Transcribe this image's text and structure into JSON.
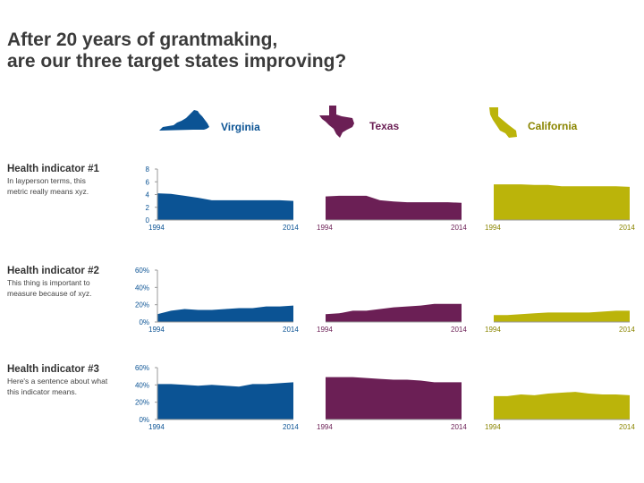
{
  "title": {
    "line1": "After 20 years of grantmaking,",
    "line2": "are our three target states improving?"
  },
  "states": [
    {
      "name": "Virginia",
      "color": "#0b5394",
      "icon": "virginia-state-icon"
    },
    {
      "name": "Texas",
      "color": "#6b1f55",
      "icon": "texas-state-icon"
    },
    {
      "name": "California",
      "color": "#bbb40a",
      "icon": "california-state-icon"
    }
  ],
  "rows": [
    {
      "title": "Health indicator #1",
      "description": "In layperson terms, this metric really means xyz."
    },
    {
      "title": "Health indicator #2",
      "description": "This thing is important to measure because of xyz."
    },
    {
      "title": "Health indicator #3",
      "description": "Here's a sentence about what this indicator means."
    }
  ],
  "chart_data": [
    {
      "type": "area",
      "indicator": "Health indicator #1",
      "state": "Virginia",
      "x": [
        1994,
        1996,
        1998,
        2000,
        2002,
        2004,
        2006,
        2008,
        2010,
        2012,
        2014
      ],
      "values": [
        4.2,
        4.1,
        3.8,
        3.5,
        3.1,
        3.1,
        3.1,
        3.1,
        3.1,
        3.1,
        3.0
      ],
      "ylim": [
        0,
        8
      ],
      "yticks": [
        "0",
        "2",
        "4",
        "6",
        "8"
      ],
      "xtick_labels": [
        "1994",
        "2014"
      ]
    },
    {
      "type": "area",
      "indicator": "Health indicator #1",
      "state": "Texas",
      "x": [
        1994,
        1996,
        1998,
        2000,
        2002,
        2004,
        2006,
        2008,
        2010,
        2012,
        2014
      ],
      "values": [
        3.7,
        3.8,
        3.8,
        3.8,
        3.1,
        2.9,
        2.8,
        2.8,
        2.8,
        2.8,
        2.7
      ],
      "ylim": [
        0,
        8
      ],
      "xtick_labels": [
        "1994",
        "2014"
      ]
    },
    {
      "type": "area",
      "indicator": "Health indicator #1",
      "state": "California",
      "x": [
        1994,
        1996,
        1998,
        2000,
        2002,
        2004,
        2006,
        2008,
        2010,
        2012,
        2014
      ],
      "values": [
        5.6,
        5.6,
        5.6,
        5.5,
        5.5,
        5.3,
        5.3,
        5.3,
        5.3,
        5.3,
        5.2
      ],
      "ylim": [
        0,
        8
      ],
      "xtick_labels": [
        "1994",
        "2014"
      ]
    },
    {
      "type": "area",
      "indicator": "Health indicator #2",
      "state": "Virginia",
      "x": [
        1994,
        1996,
        1998,
        2000,
        2002,
        2004,
        2006,
        2008,
        2010,
        2012,
        2014
      ],
      "values": [
        0.09,
        0.13,
        0.15,
        0.14,
        0.14,
        0.15,
        0.16,
        0.16,
        0.18,
        0.18,
        0.19
      ],
      "ylim": [
        0,
        0.6
      ],
      "yticks": [
        "0%",
        "20%",
        "40%",
        "60%"
      ],
      "xtick_labels": [
        "1994",
        "2014"
      ]
    },
    {
      "type": "area",
      "indicator": "Health indicator #2",
      "state": "Texas",
      "x": [
        1994,
        1996,
        1998,
        2000,
        2002,
        2004,
        2006,
        2008,
        2010,
        2012,
        2014
      ],
      "values": [
        0.09,
        0.1,
        0.13,
        0.13,
        0.15,
        0.17,
        0.18,
        0.19,
        0.21,
        0.21,
        0.21
      ],
      "ylim": [
        0,
        0.6
      ],
      "xtick_labels": [
        "1994",
        "2014"
      ]
    },
    {
      "type": "area",
      "indicator": "Health indicator #2",
      "state": "California",
      "x": [
        1994,
        1996,
        1998,
        2000,
        2002,
        2004,
        2006,
        2008,
        2010,
        2012,
        2014
      ],
      "values": [
        0.08,
        0.08,
        0.09,
        0.1,
        0.11,
        0.11,
        0.11,
        0.11,
        0.12,
        0.13,
        0.13
      ],
      "ylim": [
        0,
        0.6
      ],
      "xtick_labels": [
        "1994",
        "2014"
      ]
    },
    {
      "type": "area",
      "indicator": "Health indicator #3",
      "state": "Virginia",
      "x": [
        1994,
        1996,
        1998,
        2000,
        2002,
        2004,
        2006,
        2008,
        2010,
        2012,
        2014
      ],
      "values": [
        0.41,
        0.41,
        0.4,
        0.39,
        0.4,
        0.39,
        0.38,
        0.41,
        0.41,
        0.42,
        0.43
      ],
      "ylim": [
        0,
        0.6
      ],
      "yticks": [
        "0%",
        "20%",
        "40%",
        "60%"
      ],
      "xtick_labels": [
        "1994",
        "2014"
      ]
    },
    {
      "type": "area",
      "indicator": "Health indicator #3",
      "state": "Texas",
      "x": [
        1994,
        1996,
        1998,
        2000,
        2002,
        2004,
        2006,
        2008,
        2010,
        2012,
        2014
      ],
      "values": [
        0.49,
        0.49,
        0.49,
        0.48,
        0.47,
        0.46,
        0.46,
        0.45,
        0.43,
        0.43,
        0.43
      ],
      "ylim": [
        0,
        0.6
      ],
      "xtick_labels": [
        "1994",
        "2014"
      ]
    },
    {
      "type": "area",
      "indicator": "Health indicator #3",
      "state": "California",
      "x": [
        1994,
        1996,
        1998,
        2000,
        2002,
        2004,
        2006,
        2008,
        2010,
        2012,
        2014
      ],
      "values": [
        0.27,
        0.27,
        0.29,
        0.28,
        0.3,
        0.31,
        0.32,
        0.3,
        0.29,
        0.29,
        0.28
      ],
      "ylim": [
        0,
        0.6
      ],
      "xtick_labels": [
        "1994",
        "2014"
      ]
    }
  ]
}
